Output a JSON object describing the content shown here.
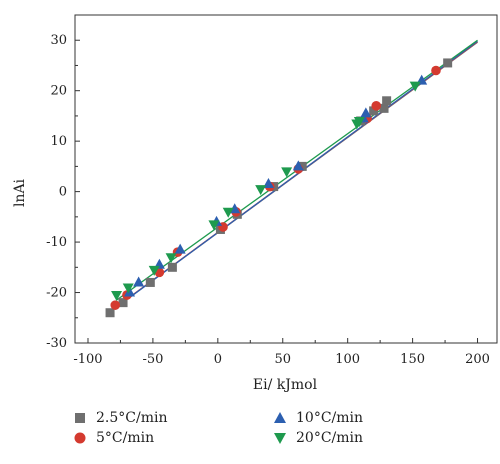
{
  "chart_data": {
    "type": "scatter",
    "title": "",
    "xlabel": "Ei/ kJmol",
    "ylabel": "lnAi",
    "xlim": [
      -110,
      215
    ],
    "ylim": [
      -30,
      35
    ],
    "xticks": [
      -100,
      -50,
      0,
      50,
      100,
      150,
      200
    ],
    "yticks": [
      -30,
      -20,
      -10,
      0,
      10,
      20,
      30
    ],
    "grid": false,
    "legend_position": "bottom",
    "series": [
      {
        "name": "2.5°C/min",
        "color": "#6f6f6f",
        "marker": "square",
        "points": [
          [
            -83,
            -24
          ],
          [
            -73,
            -22
          ],
          [
            -52,
            -18
          ],
          [
            -35,
            -15
          ],
          [
            2,
            -7.5
          ],
          [
            15,
            -4.5
          ],
          [
            43,
            1
          ],
          [
            65,
            5
          ],
          [
            110,
            14
          ],
          [
            120,
            16
          ],
          [
            128,
            16.5
          ],
          [
            130,
            18
          ],
          [
            177,
            25.5
          ]
        ],
        "fit": [
          [
            -83,
            -23.8
          ],
          [
            200,
            29.6
          ]
        ]
      },
      {
        "name": "5°C/min",
        "color": "#d43a2f",
        "marker": "circle",
        "points": [
          [
            -79,
            -22.5
          ],
          [
            -70,
            -20.5
          ],
          [
            -45,
            -16
          ],
          [
            -31,
            -12
          ],
          [
            4,
            -7
          ],
          [
            14,
            -4
          ],
          [
            40,
            1
          ],
          [
            62,
            4.5
          ],
          [
            115,
            14.5
          ],
          [
            122,
            17
          ],
          [
            168,
            24
          ]
        ],
        "fit": [
          [
            -79,
            -23
          ],
          [
            200,
            29.7
          ]
        ]
      },
      {
        "name": "10°C/min",
        "color": "#2c5fb0",
        "marker": "triangle-up",
        "points": [
          [
            -68,
            -20
          ],
          [
            -61,
            -18
          ],
          [
            -45,
            -14.5
          ],
          [
            -29,
            -11.5
          ],
          [
            -1,
            -6
          ],
          [
            13,
            -3.5
          ],
          [
            39,
            1.5
          ],
          [
            62,
            5
          ],
          [
            112,
            14.5
          ],
          [
            114,
            15.5
          ],
          [
            157,
            22
          ]
        ],
        "fit": [
          [
            -68,
            -21
          ],
          [
            200,
            29.8
          ]
        ]
      },
      {
        "name": "20°C/min",
        "color": "#1e9a4e",
        "marker": "triangle-down",
        "points": [
          [
            -78,
            -20.5
          ],
          [
            -69,
            -19
          ],
          [
            -49,
            -15.5
          ],
          [
            -36,
            -13
          ],
          [
            -3,
            -6.5
          ],
          [
            8,
            -4
          ],
          [
            33,
            0.5
          ],
          [
            53,
            4
          ],
          [
            107,
            13.5
          ],
          [
            109,
            14
          ],
          [
            152,
            21
          ]
        ],
        "fit": [
          [
            -78,
            -21.5
          ],
          [
            200,
            30
          ]
        ]
      }
    ]
  }
}
